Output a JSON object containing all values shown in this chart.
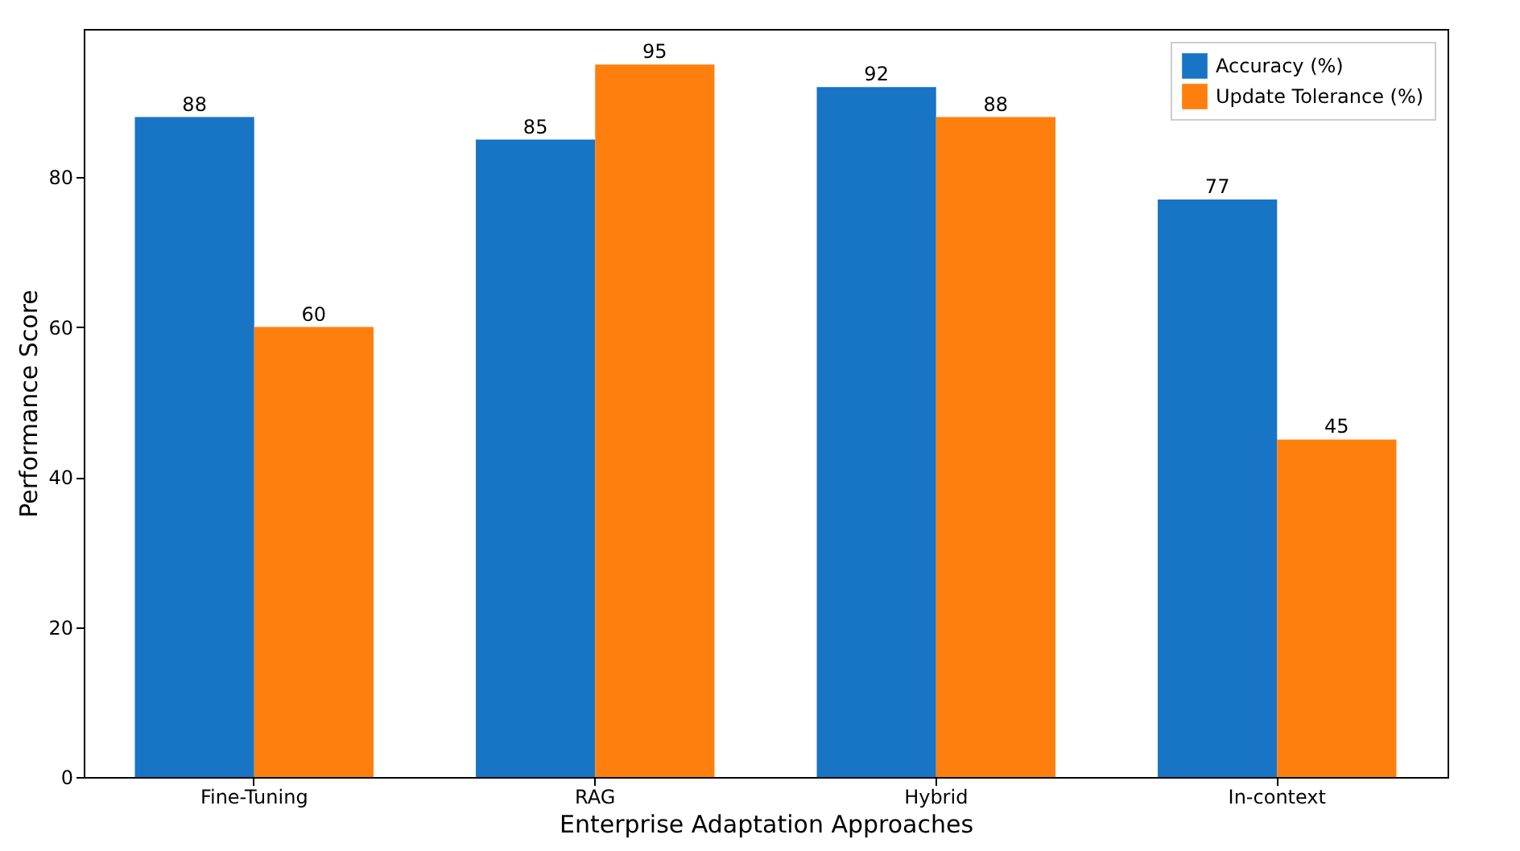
{
  "chart_data": {
    "type": "bar",
    "xlabel": "Enterprise Adaptation Approaches",
    "ylabel": "Performance Score",
    "categories": [
      "Fine-Tuning",
      "RAG",
      "Hybrid",
      "In-context"
    ],
    "series": [
      {
        "name": "Accuracy (%)",
        "color": "#1874c5",
        "values": [
          88,
          85,
          92,
          77
        ]
      },
      {
        "name": "Update Tolerance (%)",
        "color": "#ff7f0e",
        "values": [
          60,
          95,
          88,
          45
        ]
      }
    ],
    "ylim": [
      0,
      99.75
    ],
    "yticks": [
      0,
      20,
      40,
      60,
      80
    ],
    "legend": "top right",
    "data_labels": true
  }
}
